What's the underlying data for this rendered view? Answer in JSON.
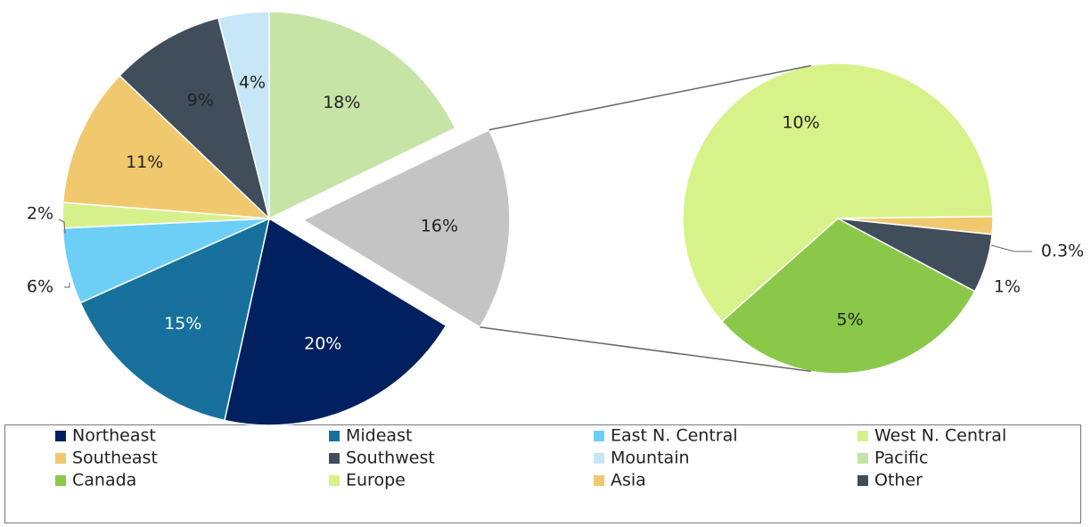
{
  "chart_data": {
    "type": "pie-of-pie",
    "categories": [
      "Northeast",
      "Mideast",
      "East N. Central",
      "West N. Central",
      "Southeast",
      "Southwest",
      "Mountain",
      "Pacific"
    ],
    "values": [
      20,
      15,
      6,
      2,
      11,
      9,
      4,
      18
    ],
    "value_labels": [
      "20%",
      "15%",
      "6%",
      "2%",
      "11%",
      "9%",
      "4%",
      "18%"
    ],
    "colors": [
      "#002060",
      "#17719c",
      "#6dcff6",
      "#d6f18c",
      "#f0c96f",
      "#404d5b",
      "#c7e6f7",
      "#c6e4a6"
    ],
    "other": {
      "value": 16,
      "value_label": "16%",
      "color": "#c4c4c4"
    },
    "secondary": {
      "categories": [
        "Canada",
        "Europe",
        "Asia",
        "Other"
      ],
      "values": [
        5,
        10,
        0.3,
        1
      ],
      "value_labels": [
        "5%",
        "10%",
        "0.3%",
        "1%"
      ],
      "colors": [
        "#8bc84a",
        "#d8f28a",
        "#f0c96f",
        "#404d5b"
      ]
    }
  }
}
